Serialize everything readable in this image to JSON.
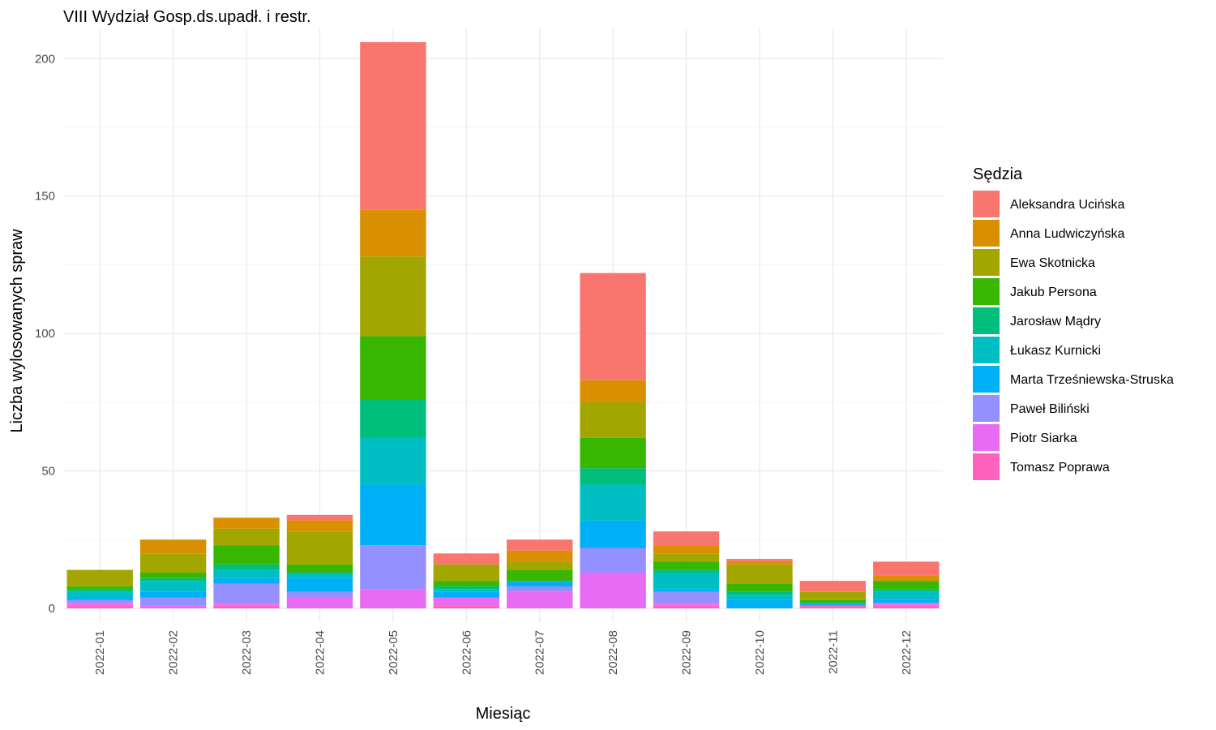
{
  "chart_data": {
    "type": "bar",
    "stacked": true,
    "title": "VIII Wydział Gosp.ds.upadł. i restr.",
    "xlabel": "Miesiąc",
    "ylabel": "Liczba wylosowanych spraw",
    "ylim": [
      -5,
      211
    ],
    "yticks": [
      0,
      50,
      100,
      150,
      200
    ],
    "grid": true,
    "legend": {
      "title": "Sędzia",
      "position": "right"
    },
    "categories": [
      "2022-01",
      "2022-02",
      "2022-03",
      "2022-04",
      "2022-05",
      "2022-06",
      "2022-07",
      "2022-08",
      "2022-09",
      "2022-10",
      "2022-11",
      "2022-12"
    ],
    "series": [
      {
        "name": "Aleksandra Ucińska",
        "color": "#F8766D",
        "values": [
          0,
          0,
          0,
          2,
          61,
          4,
          4,
          39,
          5,
          1,
          4,
          5
        ]
      },
      {
        "name": "Anna Ludwiczyńska",
        "color": "#D89000",
        "values": [
          0,
          5,
          4,
          4,
          17,
          0,
          4,
          8,
          3,
          1,
          0,
          2
        ]
      },
      {
        "name": "Ewa Skotnicka",
        "color": "#A3A500",
        "values": [
          6,
          7,
          6,
          12,
          29,
          6,
          3,
          13,
          3,
          7,
          3,
          0
        ]
      },
      {
        "name": "Jakub Persona",
        "color": "#39B600",
        "values": [
          1,
          2,
          7,
          3,
          23,
          2,
          4,
          11,
          3,
          3,
          1,
          3
        ]
      },
      {
        "name": "Jarosław Mądry",
        "color": "#00BF7D",
        "values": [
          1,
          1,
          2,
          0,
          14,
          1,
          0,
          6,
          1,
          1,
          0,
          1
        ]
      },
      {
        "name": "Łukasz Kurnicki",
        "color": "#00BFC4",
        "values": [
          2,
          4,
          3,
          2,
          17,
          1,
          0,
          13,
          6,
          2,
          0,
          3
        ]
      },
      {
        "name": "Marta Trześniewska-Struska",
        "color": "#00B0F6",
        "values": [
          1,
          2,
          2,
          5,
          22,
          2,
          2,
          10,
          1,
          3,
          1,
          1
        ]
      },
      {
        "name": "Paweł Biliński",
        "color": "#9590FF",
        "values": [
          1,
          3,
          7,
          2,
          16,
          0,
          2,
          9,
          4,
          0,
          0,
          0
        ]
      },
      {
        "name": "Piotr Siarka",
        "color": "#E76BF3",
        "values": [
          1,
          1,
          1,
          4,
          7,
          3,
          6,
          13,
          1,
          0,
          0,
          1
        ]
      },
      {
        "name": "Tomasz Poprawa",
        "color": "#FF62BC",
        "values": [
          1,
          0,
          1,
          0,
          0,
          1,
          0,
          0,
          1,
          0,
          1,
          1
        ]
      }
    ]
  }
}
